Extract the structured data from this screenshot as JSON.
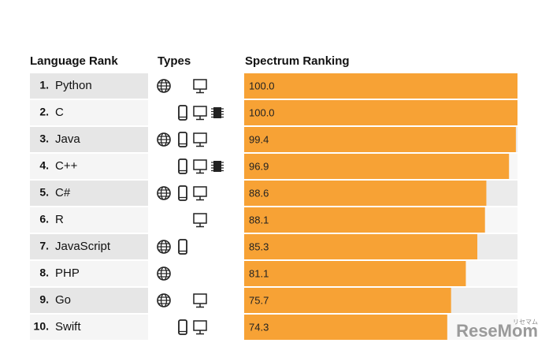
{
  "chart_data": {
    "type": "bar",
    "headers": [
      "Language Rank",
      "Types",
      "Spectrum Ranking"
    ],
    "ranks": [
      "1.",
      "2.",
      "3.",
      "4.",
      "5.",
      "6.",
      "7.",
      "8.",
      "9.",
      "10."
    ],
    "categories": [
      "Python",
      "C",
      "Java",
      "C++",
      "C#",
      "R",
      "JavaScript",
      "PHP",
      "Go",
      "Swift"
    ],
    "values": [
      100,
      100,
      99.4,
      96.9,
      88.6,
      88.1,
      85.3,
      81.1,
      75.7,
      74.3
    ],
    "value_labels": [
      "100.0",
      "100.0",
      "99.4",
      "96.9",
      "88.6",
      "88.1",
      "85.3",
      "81.1",
      "75.7",
      "74.3"
    ],
    "xlim": [
      0,
      100
    ],
    "color": "#f7a235",
    "watermark": "ReseMom",
    "watermark_small": "リセマム"
  }
}
